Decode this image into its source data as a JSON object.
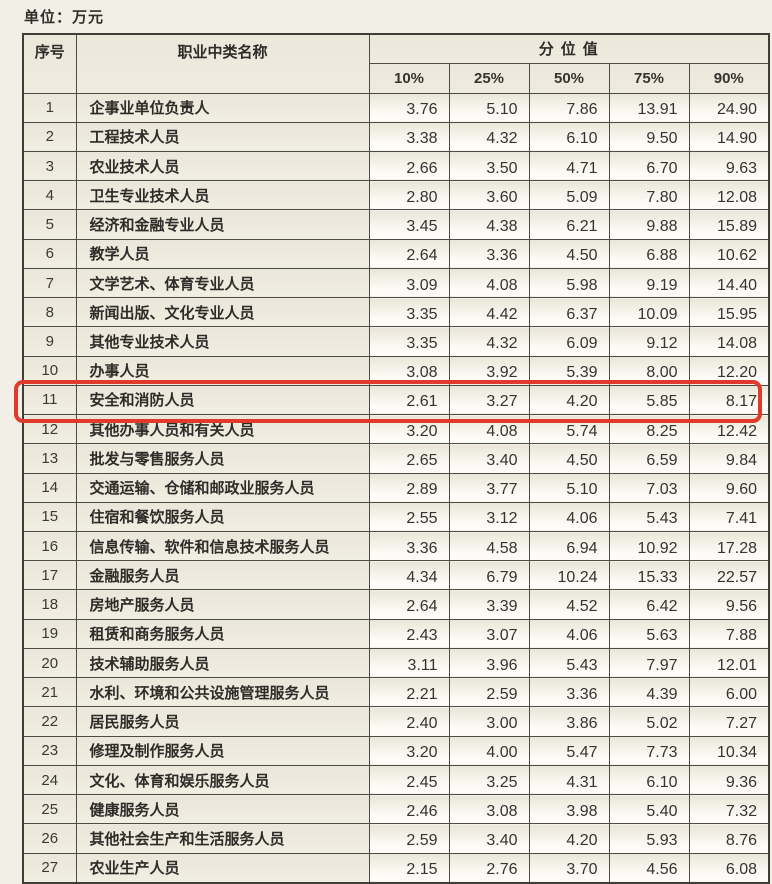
{
  "page": {
    "unit_label": "单位：万元"
  },
  "table": {
    "col_headers": {
      "index": "序号",
      "name": "职业中类名称",
      "group": "分位值"
    },
    "percentiles": [
      "10%",
      "25%",
      "50%",
      "75%",
      "90%"
    ],
    "highlight": {
      "row_no": "11",
      "color": "#df3a2b"
    },
    "rows": [
      {
        "no": "1",
        "name": "企事业单位负责人",
        "values": [
          "3.76",
          "5.10",
          "7.86",
          "13.91",
          "24.90"
        ]
      },
      {
        "no": "2",
        "name": "工程技术人员",
        "values": [
          "3.38",
          "4.32",
          "6.10",
          "9.50",
          "14.90"
        ]
      },
      {
        "no": "3",
        "name": "农业技术人员",
        "values": [
          "2.66",
          "3.50",
          "4.71",
          "6.70",
          "9.63"
        ]
      },
      {
        "no": "4",
        "name": "卫生专业技术人员",
        "values": [
          "2.80",
          "3.60",
          "5.09",
          "7.80",
          "12.08"
        ]
      },
      {
        "no": "5",
        "name": "经济和金融专业人员",
        "values": [
          "3.45",
          "4.38",
          "6.21",
          "9.88",
          "15.89"
        ]
      },
      {
        "no": "6",
        "name": "教学人员",
        "values": [
          "2.64",
          "3.36",
          "4.50",
          "6.88",
          "10.62"
        ]
      },
      {
        "no": "7",
        "name": "文学艺术、体育专业人员",
        "values": [
          "3.09",
          "4.08",
          "5.98",
          "9.19",
          "14.40"
        ]
      },
      {
        "no": "8",
        "name": "新闻出版、文化专业人员",
        "values": [
          "3.35",
          "4.42",
          "6.37",
          "10.09",
          "15.95"
        ]
      },
      {
        "no": "9",
        "name": "其他专业技术人员",
        "values": [
          "3.35",
          "4.32",
          "6.09",
          "9.12",
          "14.08"
        ]
      },
      {
        "no": "10",
        "name": "办事人员",
        "values": [
          "3.08",
          "3.92",
          "5.39",
          "8.00",
          "12.20"
        ]
      },
      {
        "no": "11",
        "name": "安全和消防人员",
        "values": [
          "2.61",
          "3.27",
          "4.20",
          "5.85",
          "8.17"
        ]
      },
      {
        "no": "12",
        "name": "其他办事人员和有关人员",
        "values": [
          "3.20",
          "4.08",
          "5.74",
          "8.25",
          "12.42"
        ]
      },
      {
        "no": "13",
        "name": "批发与零售服务人员",
        "values": [
          "2.65",
          "3.40",
          "4.50",
          "6.59",
          "9.84"
        ]
      },
      {
        "no": "14",
        "name": "交通运输、仓储和邮政业服务人员",
        "values": [
          "2.89",
          "3.77",
          "5.10",
          "7.03",
          "9.60"
        ]
      },
      {
        "no": "15",
        "name": "住宿和餐饮服务人员",
        "values": [
          "2.55",
          "3.12",
          "4.06",
          "5.43",
          "7.41"
        ]
      },
      {
        "no": "16",
        "name": "信息传输、软件和信息技术服务人员",
        "values": [
          "3.36",
          "4.58",
          "6.94",
          "10.92",
          "17.28"
        ]
      },
      {
        "no": "17",
        "name": "金融服务人员",
        "values": [
          "4.34",
          "6.79",
          "10.24",
          "15.33",
          "22.57"
        ]
      },
      {
        "no": "18",
        "name": "房地产服务人员",
        "values": [
          "2.64",
          "3.39",
          "4.52",
          "6.42",
          "9.56"
        ]
      },
      {
        "no": "19",
        "name": "租赁和商务服务人员",
        "values": [
          "2.43",
          "3.07",
          "4.06",
          "5.63",
          "7.88"
        ]
      },
      {
        "no": "20",
        "name": "技术辅助服务人员",
        "values": [
          "3.11",
          "3.96",
          "5.43",
          "7.97",
          "12.01"
        ]
      },
      {
        "no": "21",
        "name": "水利、环境和公共设施管理服务人员",
        "values": [
          "2.21",
          "2.59",
          "3.36",
          "4.39",
          "6.00"
        ]
      },
      {
        "no": "22",
        "name": "居民服务人员",
        "values": [
          "2.40",
          "3.00",
          "3.86",
          "5.02",
          "7.27"
        ]
      },
      {
        "no": "23",
        "name": "修理及制作服务人员",
        "values": [
          "3.20",
          "4.00",
          "5.47",
          "7.73",
          "10.34"
        ]
      },
      {
        "no": "24",
        "name": "文化、体育和娱乐服务人员",
        "values": [
          "2.45",
          "3.25",
          "4.31",
          "6.10",
          "9.36"
        ]
      },
      {
        "no": "25",
        "name": "健康服务人员",
        "values": [
          "2.46",
          "3.08",
          "3.98",
          "5.40",
          "7.32"
        ]
      },
      {
        "no": "26",
        "name": "其他社会生产和生活服务人员",
        "values": [
          "2.59",
          "3.40",
          "4.20",
          "5.93",
          "8.76"
        ]
      },
      {
        "no": "27",
        "name": "农业生产人员",
        "values": [
          "2.15",
          "2.76",
          "3.70",
          "4.56",
          "6.08"
        ]
      }
    ]
  }
}
